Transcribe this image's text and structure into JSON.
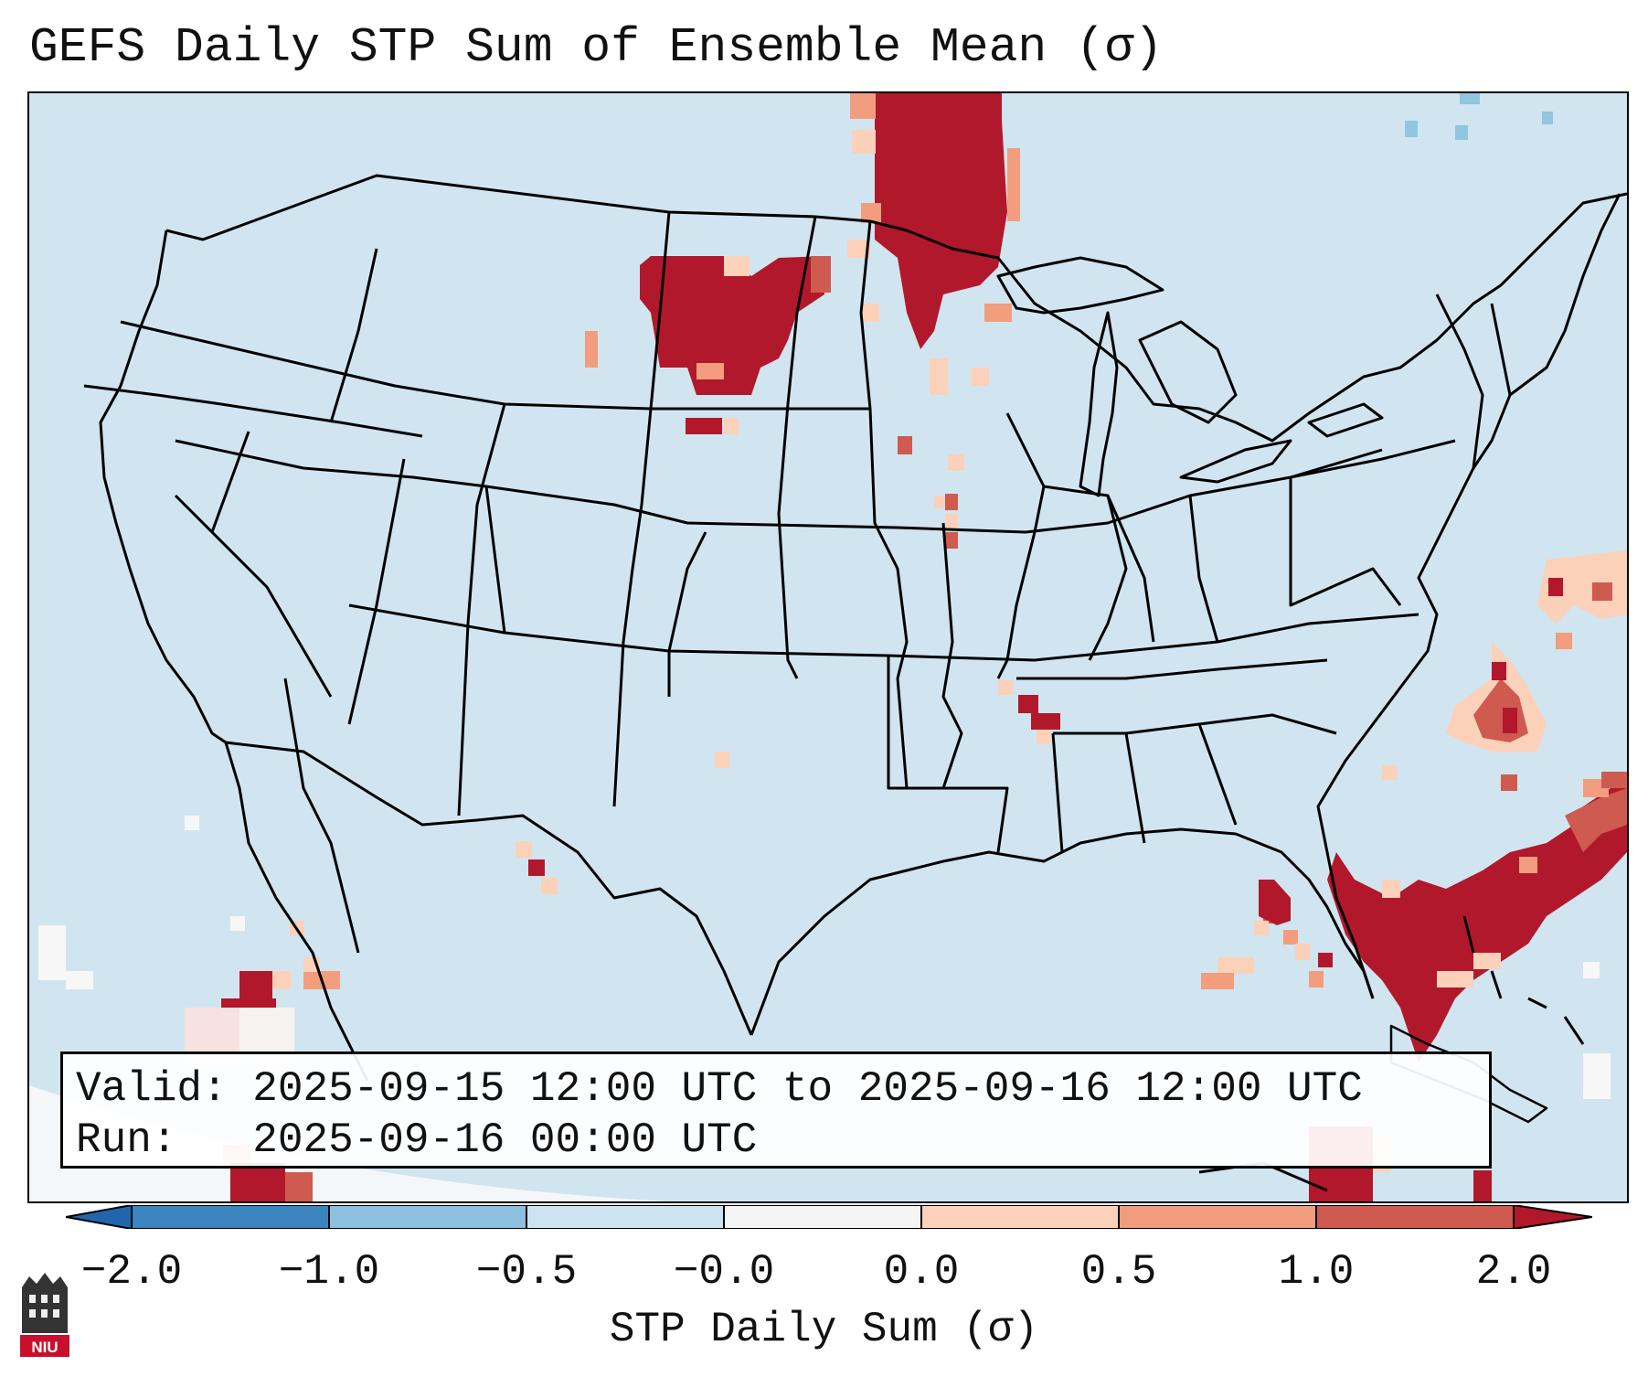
{
  "title": "GEFS Daily STP Sum of Ensemble Mean (σ)",
  "info": {
    "valid_label": "Valid:",
    "valid_value": "2025-09-15 12:00 UTC to 2025-09-16 12:00 UTC",
    "run_label": "Run:",
    "run_value": "2025-09-16 00:00 UTC"
  },
  "colorbar": {
    "label": "STP Daily Sum (σ)",
    "ticks": [
      "−2.0",
      "−1.0",
      "−0.5",
      "−0.0",
      "0.0",
      "0.5",
      "1.0",
      "2.0"
    ],
    "colors": [
      "#3b84c0",
      "#8cc0de",
      "#cde3ef",
      "#f5f5f5",
      "#fbd1b9",
      "#f19d7e",
      "#cf5a4f",
      "#b2182b"
    ],
    "under_color": "#2166ac",
    "over_color": "#b2182b"
  },
  "map": {
    "region": "Continental United States",
    "background_color": "#d1e5f0",
    "field_colors": {
      "light_pink": "#fbd1b9",
      "salmon": "#f19d7e",
      "red": "#cf5a4f",
      "dark_red": "#b2182b",
      "white": "#f7f7f7",
      "light_blue": "#92c5de"
    }
  },
  "logo": {
    "text": "NIU",
    "accent": "#c8102e"
  }
}
